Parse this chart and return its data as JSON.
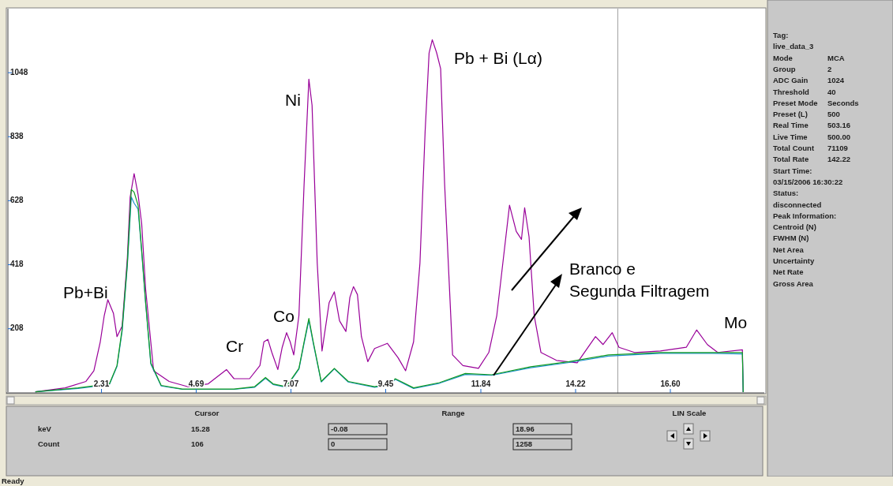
{
  "chart_data": [
    {
      "type": "line",
      "xlim": [
        -0.08,
        18.96
      ],
      "ylim": [
        0,
        1258
      ],
      "xticks": [
        2.31,
        4.69,
        7.07,
        9.45,
        11.84,
        14.22,
        {
          "value": 16.6,
          "label": "16.60"
        }
      ],
      "yticks": [
        208,
        418,
        628,
        838,
        1048
      ],
      "ref_lines": [
        {
          "axis": "x",
          "value": 15.28,
          "color": "#a0a0a0"
        }
      ],
      "annotations": [
        "Pb+Bi",
        "Cr",
        "Co",
        "Ni",
        "Pb + Bi (Lα)",
        "Mo",
        {
          "text": "Branco e\nSegunda Filtragem",
          "x": 12.16,
          "y": 55
        }
      ],
      "series": [
        {
          "color": "#990099",
          "x": [
            0.65,
            1.4,
            1.92,
            2.12,
            2.28,
            2.38,
            2.47,
            2.61,
            2.7,
            2.83,
            2.96,
            3.03,
            3.13,
            3.23,
            3.32,
            3.42,
            3.62,
            4.01,
            4.47,
            4.99,
            5.45,
            5.64,
            6.03,
            6.29,
            6.39,
            6.49,
            6.59,
            6.74,
            6.85,
            6.96,
            7.05,
            7.14,
            7.27,
            7.4,
            7.52,
            7.6,
            7.73,
            7.85,
            8.03,
            8.16,
            8.29,
            8.45,
            8.55,
            8.64,
            8.74,
            8.84,
            9.0,
            9.17,
            9.49,
            9.76,
            9.95,
            10.15,
            10.31,
            10.44,
            10.54,
            10.62,
            10.73,
            10.83,
            10.93,
            11.13,
            11.39,
            11.78,
            12.04,
            12.24,
            12.43,
            12.56,
            12.73,
            12.86,
            12.94,
            13.05,
            13.18,
            13.35,
            13.74,
            14.26,
            14.72,
            14.91,
            15.14,
            15.31,
            15.7,
            16.35,
            17.0,
            17.26,
            17.53,
            17.79,
            18.41,
            18.43
          ],
          "values": [
            1,
            14,
            35,
            70,
            165,
            251,
            303,
            259,
            182,
            217,
            440,
            639,
            717,
            648,
            553,
            337,
            70,
            35,
            18,
            27,
            74,
            44,
            44,
            87,
            165,
            173,
            130,
            74,
            147,
            195,
            165,
            122,
            251,
            682,
            1027,
            941,
            423,
            135,
            294,
            329,
            234,
            199,
            311,
            346,
            320,
            182,
            100,
            143,
            160,
            113,
            70,
            165,
            423,
            855,
            1113,
            1156,
            1113,
            1061,
            682,
            122,
            87,
            78,
            130,
            251,
            466,
            613,
            527,
            501,
            605,
            510,
            251,
            130,
            104,
            96,
            182,
            156,
            195,
            147,
            130,
            135,
            147,
            204,
            156,
            130,
            139,
            0
          ]
        },
        {
          "color": "#1e90d0",
          "x": [
            0.65,
            1.72,
            2.51,
            2.7,
            2.83,
            2.96,
            3.06,
            3.13,
            3.23,
            3.32,
            3.42,
            3.55,
            3.81,
            4.34,
            5.64,
            6.16,
            6.43,
            6.62,
            6.95,
            7.27,
            7.4,
            7.52,
            7.63,
            7.83,
            8.16,
            8.51,
            9.17,
            9.56,
            9.69,
            10.15,
            10.8,
            11.45,
            12.11,
            13.09,
            14.06,
            15.04,
            16.35,
            17.66,
            18.41,
            18.43
          ],
          "values": [
            1,
            12,
            25,
            84,
            200,
            415,
            640,
            620,
            600,
            460,
            290,
            92,
            20,
            9,
            9,
            16,
            45,
            25,
            16,
            75,
            160,
            235,
            160,
            33,
            76,
            33,
            16,
            25,
            42,
            12,
            29,
            58,
            55,
            80,
            97,
            118,
            127,
            127,
            125,
            0
          ]
        },
        {
          "color": "#109a20",
          "x": [
            0.65,
            1.72,
            2.51,
            2.7,
            2.83,
            2.96,
            3.06,
            3.13,
            3.23,
            3.32,
            3.42,
            3.55,
            3.81,
            4.34,
            5.64,
            6.16,
            6.43,
            6.62,
            6.95,
            7.27,
            7.4,
            7.52,
            7.63,
            7.83,
            8.16,
            8.51,
            9.17,
            9.56,
            9.69,
            10.15,
            10.8,
            11.45,
            12.11,
            13.09,
            14.06,
            15.04,
            16.35,
            17.66,
            18.41,
            18.43
          ],
          "values": [
            1,
            14,
            27,
            87,
            208,
            423,
            665,
            656,
            613,
            466,
            294,
            96,
            22,
            10,
            10,
            18,
            48,
            27,
            18,
            78,
            165,
            242,
            165,
            35,
            78,
            35,
            18,
            27,
            44,
            14,
            31,
            61,
            57,
            83,
            100,
            122,
            130,
            130,
            130,
            0
          ]
        }
      ]
    },
    {
      "type": "other",
      "annotations": [
        "Tag:",
        "live_data_3",
        "Mode\tMCA",
        "Group\t2",
        "ADC Gain\t1024",
        "Threshold\t40",
        "Preset Mode\tSeconds",
        "Preset (L)\t500",
        "Real Time\t503.16",
        "Live Time\t500.00",
        "Total Count\t71109",
        "Total Rate\t142.22",
        "Start Time:",
        "03/15/2006 16:30:22",
        "Status:",
        "disconnected",
        "Peak Information:",
        "Centroid (N)",
        "FWHM (N)",
        "Net Area",
        "Uncertainty",
        "Net Rate",
        "Gross Area"
      ]
    },
    {
      "type": "other",
      "annotations": [
        "Cursor",
        "Range",
        "LIN Scale",
        "keV",
        "15.28",
        "-0.08",
        "18.96",
        "Count",
        "106",
        "0",
        "1258",
        "Ready"
      ]
    }
  ]
}
